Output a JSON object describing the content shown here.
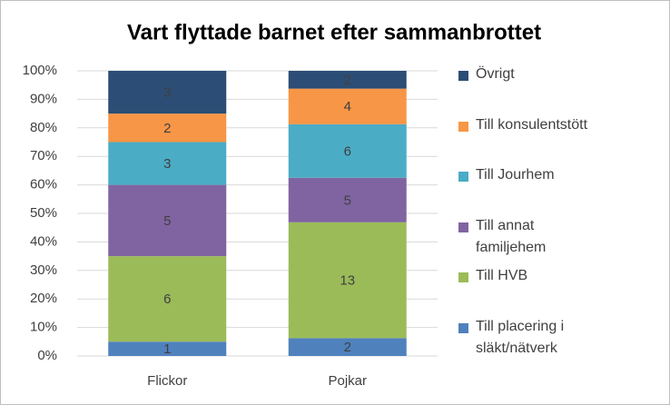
{
  "chart_data": {
    "type": "bar",
    "stacked": "percent",
    "title": "Vart flyttade barnet efter sammanbrottet",
    "categories": [
      "Flickor",
      "Pojkar"
    ],
    "series": [
      {
        "name": "Till placering i släkt/nätverk",
        "color": "#4f81bd",
        "values": [
          1,
          2
        ]
      },
      {
        "values": [
          0,
          0
        ]
      },
      {
        "name": "Till HVB",
        "color": "#9bbb59",
        "values": [
          6,
          13
        ]
      },
      {
        "name": "Till annat familjehem",
        "color": "#8064a2",
        "values": [
          5,
          5
        ]
      },
      {
        "name": "Till Jourhem",
        "color": "#4bacc6",
        "values": [
          3,
          6
        ]
      },
      {
        "name": "Till konsulentstött",
        "color": "#f79646",
        "values": [
          2,
          4
        ]
      },
      {
        "name": "Övrigt",
        "color": "#2c4d75",
        "values": [
          3,
          2
        ]
      }
    ],
    "ylim": [
      0,
      100
    ],
    "yticks": [
      {
        "value": 0,
        "label": "0%"
      },
      {
        "value": 10,
        "label": "10%"
      },
      {
        "value": 20,
        "label": "20%"
      },
      {
        "value": 30,
        "label": "30%"
      },
      {
        "value": 40,
        "label": "40%"
      },
      {
        "value": 50,
        "label": "50%"
      },
      {
        "value": 60,
        "label": "60%"
      },
      {
        "value": 70,
        "label": "70%"
      },
      {
        "value": 80,
        "label": "80%"
      },
      {
        "value": 90,
        "label": "90%"
      },
      {
        "value": 100,
        "label": "100%"
      }
    ],
    "grid": true,
    "legend": "right"
  }
}
